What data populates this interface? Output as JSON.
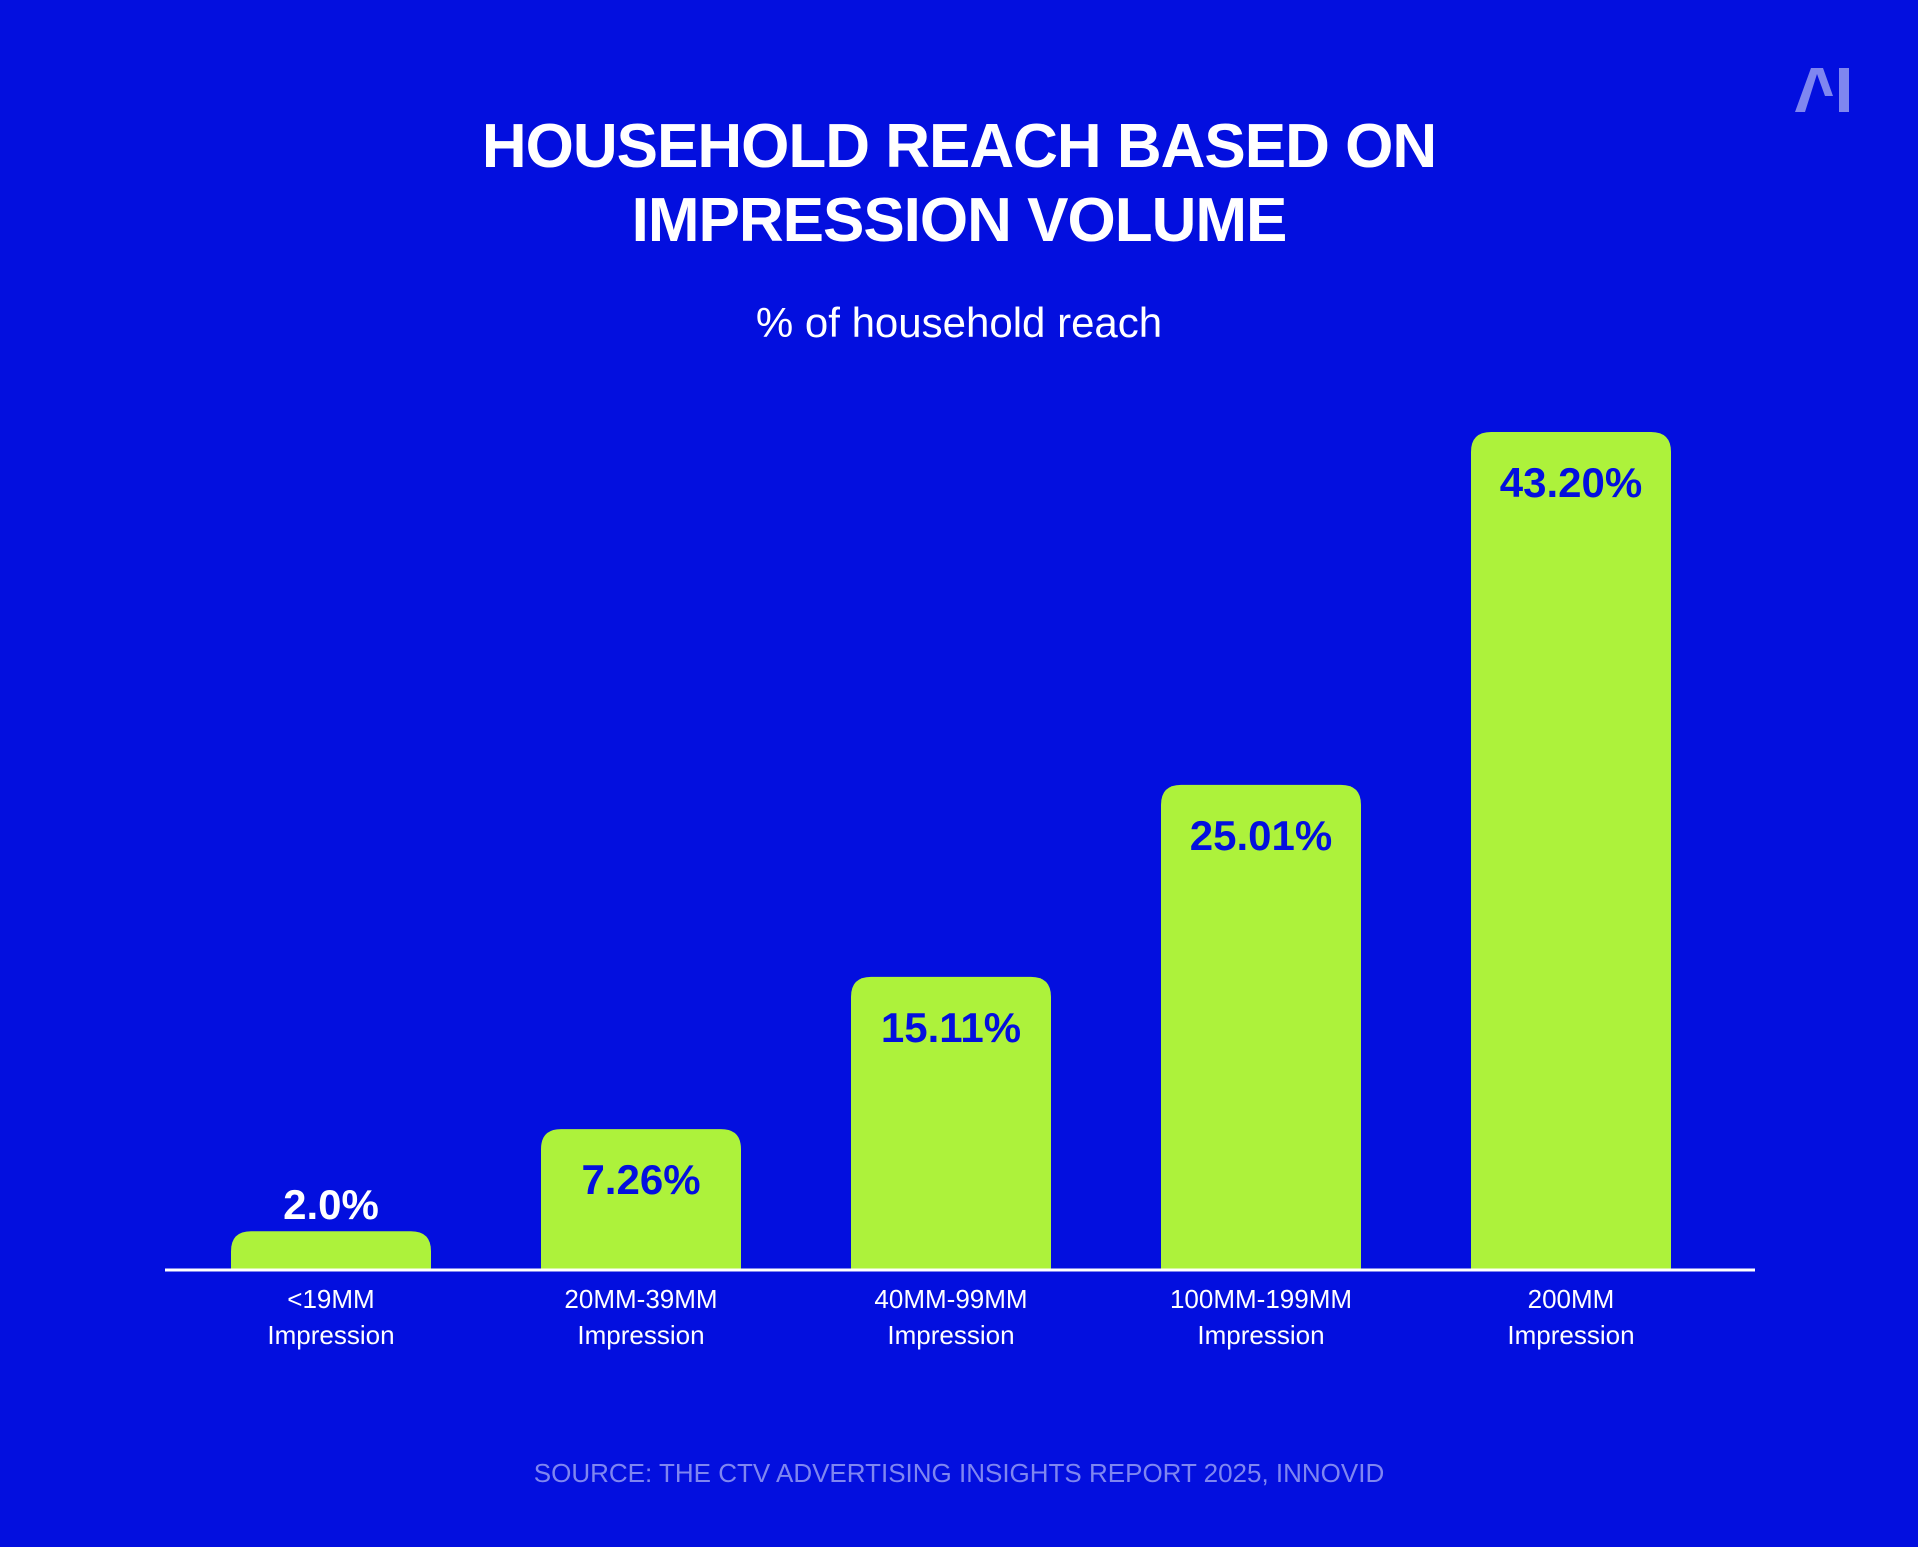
{
  "logo": {
    "text": "AI",
    "color": "#7f86f0"
  },
  "colors": {
    "background": "#030fdf",
    "bar": "#adf23b",
    "label_inside": "#030fdf",
    "label_outside": "#ffffff",
    "axis": "#ffffff",
    "source": "#7f86f0"
  },
  "chart_data": {
    "type": "bar",
    "title_lines": [
      "HOUSEHOLD REACH BASED ON",
      "IMPRESSION VOLUME"
    ],
    "subtitle": "% of household reach",
    "categories": [
      [
        "<19MM",
        "Impression"
      ],
      [
        "20MM-39MM",
        "Impression"
      ],
      [
        "40MM-99MM",
        "Impression"
      ],
      [
        "100MM-199MM",
        "Impression"
      ],
      [
        "200MM",
        "Impression"
      ]
    ],
    "values": [
      2.0,
      7.26,
      15.11,
      25.01,
      43.2
    ],
    "value_labels": [
      "2.0%",
      "7.26%",
      "15.11%",
      "25.01%",
      "43.20%"
    ],
    "ylim": [
      0,
      43.2
    ],
    "grid": false,
    "legend": "none"
  },
  "source": "SOURCE: THE CTV ADVERTISING INSIGHTS REPORT 2025, INNOVID"
}
